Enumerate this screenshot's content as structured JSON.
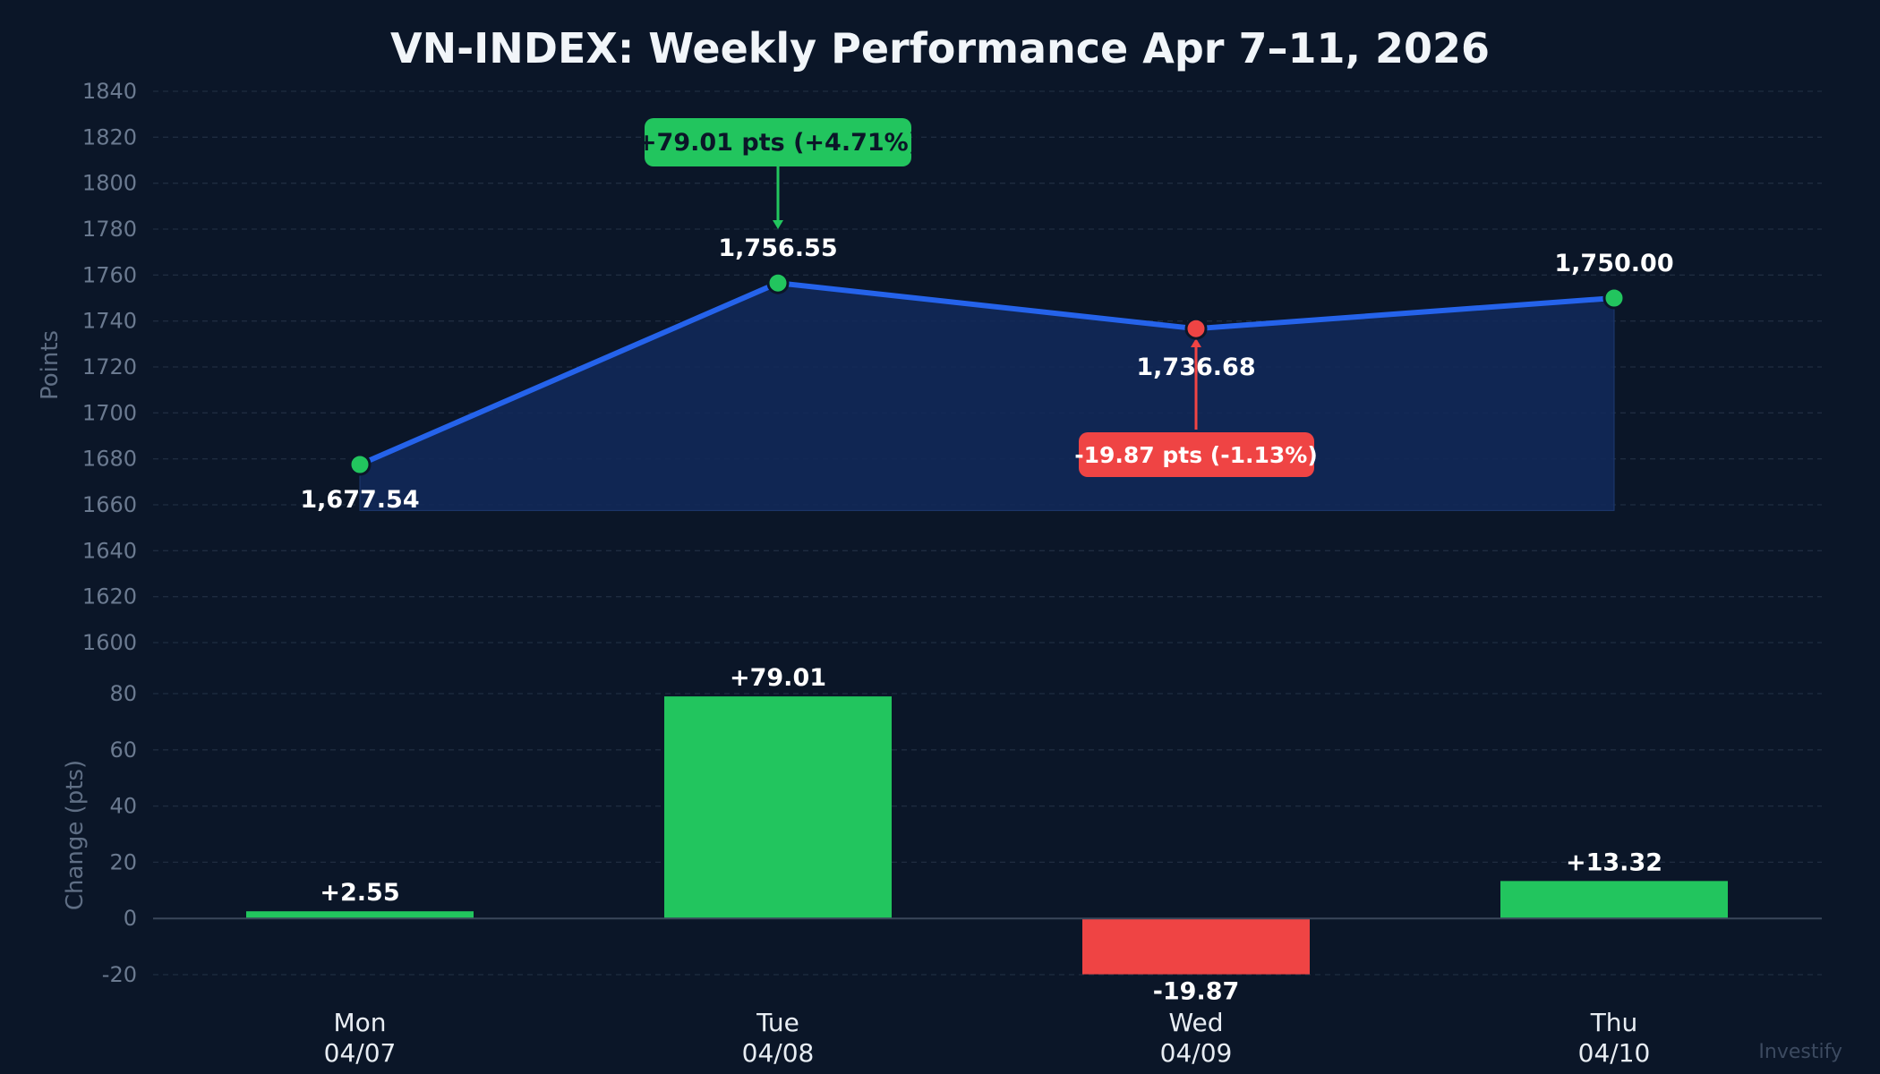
{
  "chart_data": [
    {
      "type": "line",
      "title": "VN-INDEX: Weekly Performance Apr 7–11, 2026",
      "ylabel": "Points",
      "ylim": [
        1600,
        1840
      ],
      "yticks": [
        1600,
        1620,
        1640,
        1660,
        1680,
        1700,
        1720,
        1740,
        1760,
        1780,
        1800,
        1820,
        1840
      ],
      "grid": true,
      "categories": [
        "Mon",
        "Tue",
        "Wed",
        "Thu"
      ],
      "values": [
        1677.54,
        1756.55,
        1736.68,
        1750.0
      ],
      "value_labels": [
        "1,677.54",
        "1,756.55",
        "1,736.68",
        "1,750.00"
      ],
      "point_colors": [
        "#22c55e",
        "#22c55e",
        "#ef4444",
        "#22c55e"
      ],
      "line_color": "#2563eb",
      "fill_color": "#12295a",
      "annotations": [
        {
          "text": "+79.01 pts (+4.71%)",
          "target": "Tue",
          "color": "#22c55e",
          "text_color": "#0b1628"
        },
        {
          "text": "-19.87 pts (-1.13%)",
          "target": "Wed",
          "color": "#ef4444",
          "text_color": "#ffffff"
        }
      ]
    },
    {
      "type": "bar",
      "ylabel": "Change (pts)",
      "ylim": [
        -20,
        80
      ],
      "yticks": [
        -20,
        0,
        20,
        40,
        60,
        80
      ],
      "grid": true,
      "categories": [
        "Mon",
        "Tue",
        "Wed",
        "Thu"
      ],
      "dates": [
        "04/07",
        "04/08",
        "04/09",
        "04/10"
      ],
      "values": [
        2.55,
        79.01,
        -19.87,
        13.32
      ],
      "value_labels": [
        "+2.55",
        "+79.01",
        "-19.87",
        "+13.32"
      ],
      "positive_color": "#22c55e",
      "negative_color": "#ef4444"
    }
  ],
  "watermark": "Investify"
}
